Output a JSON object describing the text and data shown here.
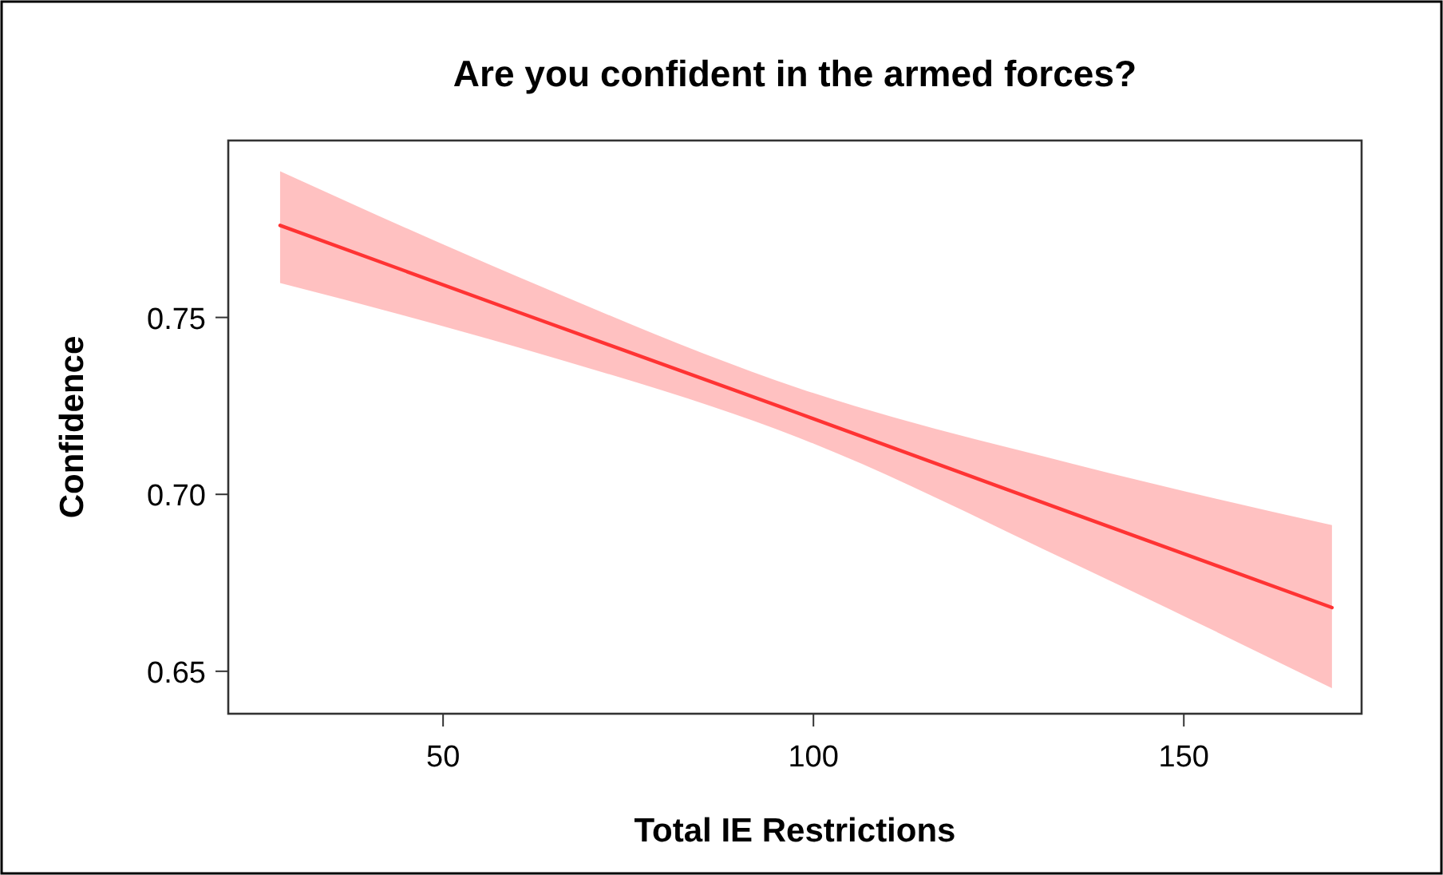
{
  "chart_data": {
    "type": "line",
    "title": "Are you confident in the armed forces?",
    "xlabel": "Total IE Restrictions",
    "ylabel": "Confidence",
    "x": [
      28,
      60,
      98,
      135,
      170
    ],
    "series": [
      {
        "color": "#ff3333",
        "values": [
          0.776,
          0.7516,
          0.7229,
          0.6946,
          0.668
        ],
        "lower": [
          0.7597,
          0.7416,
          0.716,
          0.6806,
          0.6452
        ],
        "upper": [
          0.7913,
          0.7616,
          0.73,
          0.7086,
          0.6913
        ]
      }
    ],
    "xlim": [
      21,
      174
    ],
    "xticks": [
      50,
      100,
      150
    ],
    "ylim": [
      0.638,
      0.8
    ],
    "yticks": [
      {
        "value": 0.65,
        "label": "0.65"
      },
      {
        "value": 0.7,
        "label": "0.70"
      },
      {
        "value": 0.75,
        "label": "0.75"
      }
    ],
    "grid": false,
    "marker": "none",
    "line_style": "solid"
  }
}
